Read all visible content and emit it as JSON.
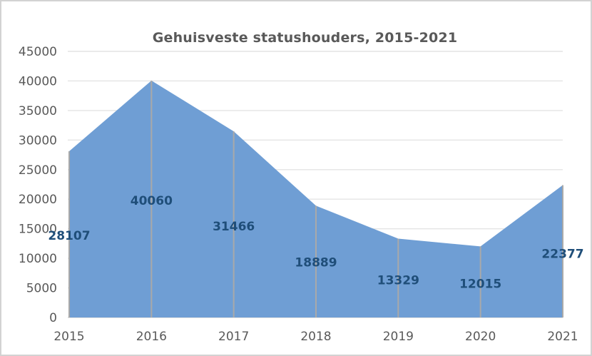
{
  "chart_data": {
    "type": "area",
    "title": "Gehuisveste statushouders, 2015-2021",
    "categories": [
      "2015",
      "2016",
      "2017",
      "2018",
      "2019",
      "2020",
      "2021"
    ],
    "series": [
      {
        "name": "Gehuisveste statushouders",
        "values": [
          28107,
          40060,
          31466,
          18889,
          13329,
          12015,
          22377
        ]
      }
    ],
    "data_labels": [
      "28107",
      "40060",
      "31466",
      "18889",
      "13329",
      "12015",
      "22377"
    ],
    "xlabel": "",
    "ylabel": "",
    "ylim": [
      0,
      45000
    ],
    "ytick_step": 5000,
    "yticks": [
      "0",
      "5000",
      "10000",
      "15000",
      "20000",
      "25000",
      "30000",
      "35000",
      "40000",
      "45000"
    ],
    "grid": "horizontal gridlines; gray drop line from each data point to x-axis",
    "legend": "none",
    "colors": {
      "area_fill": "#6f9ed4",
      "drop_line": "#a9a9a9",
      "gridline": "#e4e4e4",
      "axis_line": "#d8d8d8",
      "axis_text": "#595959",
      "data_label": "#1f4e79",
      "title_text": "#595959",
      "frame_border": "#d2d2d2"
    }
  }
}
